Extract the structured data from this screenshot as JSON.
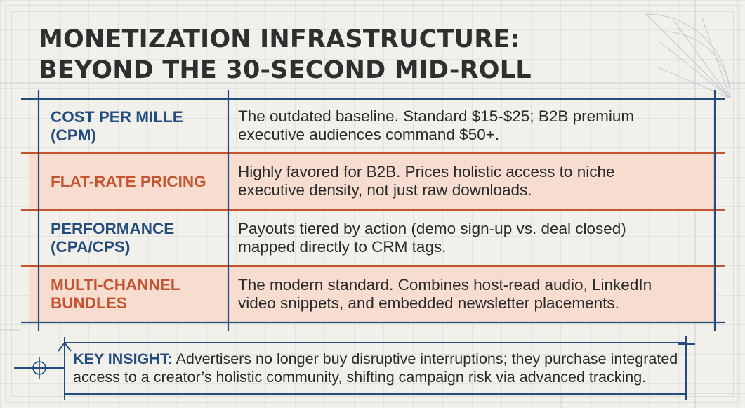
{
  "title": {
    "line1": "MONETIZATION INFRASTRUCTURE:",
    "line2": "BEYOND THE 30-SECOND MID-ROLL"
  },
  "rows": [
    {
      "label_lines": [
        "COST PER MILLE (CPM)"
      ],
      "description_lines": [
        "The outdated baseline. Standard $15-$25; B2B premium",
        "executive audiences command $50+."
      ],
      "label_color": "#244d7e",
      "highlighted": false
    },
    {
      "label_lines": [
        "FLAT-RATE PRICING"
      ],
      "description_lines": [
        "Highly favored for B2B. Prices holistic access to niche",
        "executive density, not just raw downloads."
      ],
      "label_color": "#c55330",
      "highlighted": true
    },
    {
      "label_lines": [
        "PERFORMANCE",
        "(CPA/CPS)"
      ],
      "description_lines": [
        "Payouts tiered by action (demo sign-up vs. deal closed)",
        "mapped directly to CRM tags."
      ],
      "label_color": "#244d7e",
      "highlighted": false
    },
    {
      "label_lines": [
        "MULTI-CHANNEL",
        "BUNDLES"
      ],
      "description_lines": [
        "The modern standard. Combines host-read audio, LinkedIn",
        "video snippets, and embedded newsletter placements."
      ],
      "label_color": "#c55330",
      "highlighted": true
    }
  ],
  "insight": {
    "label": "KEY INSIGHT:",
    "line1_text": " Advertisers no longer buy disruptive interruptions; they purchase integrated",
    "line2_text": "access to a creator’s holistic community, shifting campaign risk via advanced tracking."
  },
  "colors": {
    "navy": "#244d7e",
    "orange": "#c55330",
    "highlight_fill": "#f6ddcf",
    "background": "#f1f0eb"
  }
}
